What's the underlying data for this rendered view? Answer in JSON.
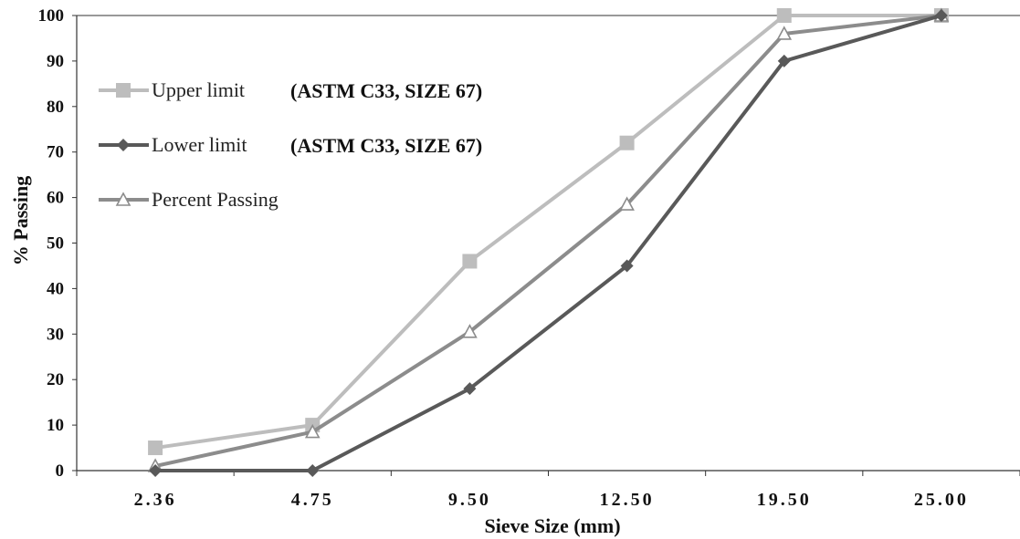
{
  "chart_data": {
    "type": "line",
    "categories": [
      "2.36",
      "4.75",
      "9.50",
      "12.50",
      "19.50",
      "25.00"
    ],
    "xlabel": "Sieve Size (mm)",
    "ylabel": "% Passing",
    "ylim": [
      0,
      100
    ],
    "yticks": [
      "0",
      "10",
      "20",
      "30",
      "40",
      "50",
      "60",
      "70",
      "80",
      "90",
      "100"
    ],
    "grid": false,
    "legend_position": "top-left",
    "series": [
      {
        "name": "Upper limit",
        "note": "(ASTM C33, SIZE 67)",
        "marker": "square",
        "color": "#bdbdbd",
        "values": [
          5,
          10,
          46,
          72,
          100,
          100
        ]
      },
      {
        "name": "Lower limit",
        "note": "(ASTM C33, SIZE 67)",
        "marker": "diamond",
        "color": "#595959",
        "values": [
          0,
          0,
          18,
          45,
          90,
          100
        ]
      },
      {
        "name": "Percent Passing",
        "note": "",
        "marker": "triangle",
        "color": "#8c8c8c",
        "values": [
          1,
          8.5,
          30.5,
          58.5,
          96,
          100
        ]
      }
    ]
  }
}
